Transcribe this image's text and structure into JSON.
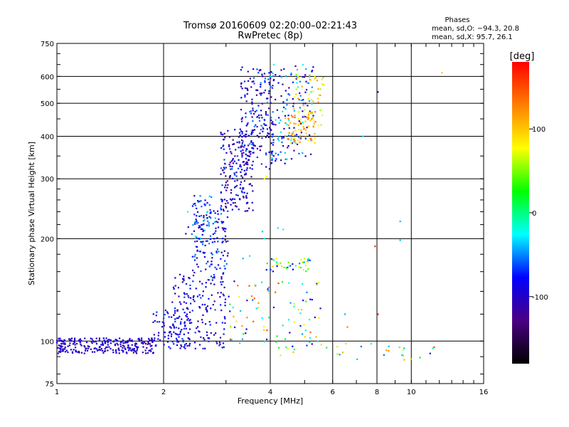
{
  "header": {
    "title": "Tromsø 20160609 02:20:00–02:21:43",
    "subtitle": "RwPretec (8p)",
    "phase_heading": "Phases",
    "phase_o": "mean, sd,O: −94.3, 20.8",
    "phase_x": "mean, sd,X:  95.7, 26.1"
  },
  "chart_data": {
    "type": "scatter",
    "title": "Tromsø 20160609 02:20:00–02:21:43",
    "subtitle": "RwPretec (8p)",
    "xlabel": "Frequency [MHz]",
    "ylabel": "Stationary phase Virtual Height [km]",
    "x_scale": "log",
    "y_scale": "log",
    "xlim": [
      1,
      16
    ],
    "ylim": [
      75,
      750
    ],
    "x_ticks": [
      1,
      2,
      4,
      6,
      8,
      10,
      16
    ],
    "y_ticks": [
      75,
      100,
      200,
      300,
      400,
      500,
      600,
      750
    ],
    "x_grid_lines": [
      2,
      4,
      6,
      8,
      10
    ],
    "y_grid_lines": [
      100,
      200,
      300,
      400,
      500,
      600
    ],
    "grid": true,
    "colorbar": {
      "label": "[deg]",
      "range": [
        -180,
        180
      ],
      "ticks": [
        100,
        0,
        -100
      ],
      "colors": [
        "#000000",
        "#4b0082",
        "#0000ff",
        "#00ffff",
        "#00ff00",
        "#ffff00",
        "#ff7f00",
        "#ff0000"
      ]
    },
    "clusters": [
      {
        "x": [
          1.0,
          1.9
        ],
        "y": [
          92,
          102
        ],
        "phase": [
          -120,
          -80
        ],
        "n": 260
      },
      {
        "x": [
          1.85,
          2.4
        ],
        "y": [
          95,
          125
        ],
        "phase": [
          -120,
          -60
        ],
        "n": 90
      },
      {
        "x": [
          2.1,
          3.0
        ],
        "y": [
          95,
          160
        ],
        "phase": [
          -120,
          -60
        ],
        "n": 170
      },
      {
        "x": [
          2.4,
          3.05
        ],
        "y": [
          160,
          260
        ],
        "phase": [
          -120,
          -50
        ],
        "n": 140
      },
      {
        "x": [
          2.3,
          2.8
        ],
        "y": [
          200,
          270
        ],
        "phase": [
          -90,
          -20
        ],
        "n": 40
      },
      {
        "x": [
          2.9,
          3.6
        ],
        "y": [
          240,
          420
        ],
        "phase": [
          -140,
          -60
        ],
        "n": 190
      },
      {
        "x": [
          3.3,
          4.1
        ],
        "y": [
          320,
          640
        ],
        "phase": [
          -130,
          -50
        ],
        "n": 200
      },
      {
        "x": [
          4.0,
          5.3
        ],
        "y": [
          330,
          650
        ],
        "phase": [
          -120,
          -20
        ],
        "n": 140
      },
      {
        "x": [
          4.4,
          5.4
        ],
        "y": [
          380,
          470
        ],
        "phase": [
          70,
          140
        ],
        "n": 70
      },
      {
        "x": [
          4.6,
          5.7
        ],
        "y": [
          430,
          620
        ],
        "phase": [
          40,
          130
        ],
        "n": 50
      },
      {
        "x": [
          3.9,
          5.2
        ],
        "y": [
          160,
          175
        ],
        "phase": [
          -100,
          120
        ],
        "n": 40
      },
      {
        "x": [
          3.0,
          5.6
        ],
        "y": [
          95,
          150
        ],
        "phase": [
          -120,
          160
        ],
        "n": 90
      },
      {
        "x": [
          4.2,
          11.5
        ],
        "y": [
          88,
          100
        ],
        "phase": [
          -80,
          130
        ],
        "n": 30
      }
    ],
    "points": [
      {
        "x": 3.35,
        "y": 175,
        "phase": -40
      },
      {
        "x": 3.5,
        "y": 178,
        "phase": -30
      },
      {
        "x": 3.85,
        "y": 300,
        "phase": 70
      },
      {
        "x": 3.9,
        "y": 305,
        "phase": 80
      },
      {
        "x": 3.8,
        "y": 210,
        "phase": -40
      },
      {
        "x": 3.85,
        "y": 200,
        "phase": -20
      },
      {
        "x": 4.2,
        "y": 215,
        "phase": -30
      },
      {
        "x": 4.35,
        "y": 213,
        "phase": -20
      },
      {
        "x": 7.3,
        "y": 400,
        "phase": -30
      },
      {
        "x": 8.05,
        "y": 540,
        "phase": -100
      },
      {
        "x": 7.9,
        "y": 190,
        "phase": 160
      },
      {
        "x": 8.05,
        "y": 120,
        "phase": 170
      },
      {
        "x": 9.3,
        "y": 225,
        "phase": -40
      },
      {
        "x": 9.3,
        "y": 198,
        "phase": -40
      },
      {
        "x": 12.2,
        "y": 615,
        "phase": 100
      },
      {
        "x": 11.3,
        "y": 92,
        "phase": -90
      },
      {
        "x": 6.5,
        "y": 120,
        "phase": -40
      },
      {
        "x": 6.6,
        "y": 110,
        "phase": 130
      },
      {
        "x": 8.5,
        "y": 94,
        "phase": 120
      },
      {
        "x": 11.6,
        "y": 96,
        "phase": 150
      }
    ]
  }
}
